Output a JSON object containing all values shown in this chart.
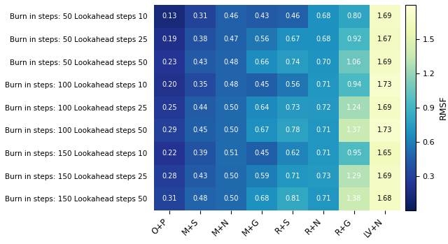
{
  "row_labels": [
    "Burn in steps: 50 Lookahead steps 10",
    "Burn in steps: 50 Lookahead steps 25",
    "Burn in steps: 50 Lookahead steps 50",
    "Burn in steps: 100 Lookahead steps 10",
    "Burn in steps: 100 Lookahead steps 25",
    "Burn in steps: 100 Lookahead steps 50",
    "Burn in steps: 150 Lookahead steps 10",
    "Burn in steps: 150 Lookahead steps 25",
    "Burn in steps: 150 Lookahead steps 50"
  ],
  "col_labels": [
    "O+P",
    "M+S",
    "M+N",
    "M+G",
    "R+S",
    "R+N",
    "R+G",
    "LV+N"
  ],
  "values": [
    [
      0.13,
      0.31,
      0.46,
      0.43,
      0.46,
      0.68,
      0.8,
      1.69
    ],
    [
      0.19,
      0.38,
      0.47,
      0.56,
      0.67,
      0.68,
      0.92,
      1.67
    ],
    [
      0.23,
      0.43,
      0.48,
      0.66,
      0.74,
      0.7,
      1.06,
      1.69
    ],
    [
      0.2,
      0.35,
      0.48,
      0.45,
      0.56,
      0.71,
      0.94,
      1.73
    ],
    [
      0.25,
      0.44,
      0.5,
      0.64,
      0.73,
      0.72,
      1.24,
      1.69
    ],
    [
      0.29,
      0.45,
      0.5,
      0.67,
      0.78,
      0.71,
      1.37,
      1.73
    ],
    [
      0.22,
      0.39,
      0.51,
      0.45,
      0.62,
      0.71,
      0.95,
      1.65
    ],
    [
      0.28,
      0.43,
      0.5,
      0.59,
      0.71,
      0.73,
      1.29,
      1.69
    ],
    [
      0.31,
      0.48,
      0.5,
      0.68,
      0.81,
      0.71,
      1.38,
      1.68
    ]
  ],
  "cmap": "YlGnBu_r",
  "colorbar_label": "RMSF",
  "vmin": 0.0,
  "vmax": 1.8,
  "colorbar_ticks": [
    0.3,
    0.6,
    0.9,
    1.2,
    1.5
  ],
  "text_color_threshold": 0.85,
  "cell_text_fontsize": 7.0,
  "row_label_fontsize": 7.5,
  "col_label_fontsize": 8.5,
  "colorbar_label_fontsize": 9
}
